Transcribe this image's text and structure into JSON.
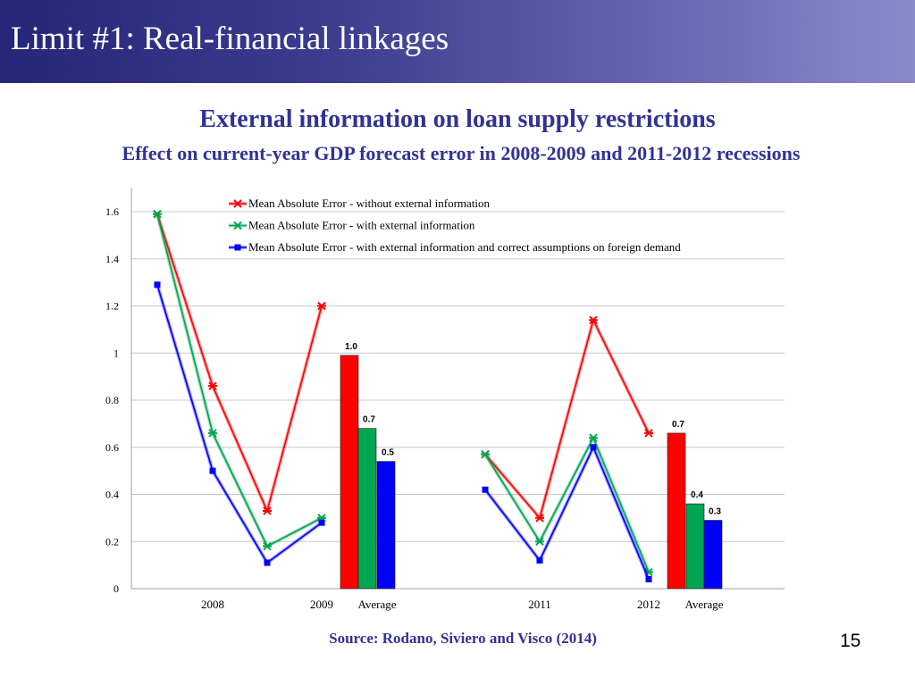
{
  "slide": {
    "header_title": "Limit #1: Real-financial linkages",
    "title": "External information on loan supply restrictions",
    "subtitle": "Effect on current-year GDP forecast error in 2008-2009 and 2011-2012 recessions",
    "source": "Source: Rodano, Siviero and Visco (2014)",
    "page_number": "15"
  },
  "colors": {
    "header_start": "#262679",
    "header_end": "#8a8acb",
    "text_accent": "#323296",
    "red": "#ff0000",
    "green": "#00a651",
    "blue": "#0000ff"
  },
  "chart_data": {
    "type": "bar+line",
    "title": "",
    "xlabel": "",
    "ylabel": "",
    "ylim": [
      0,
      1.7
    ],
    "yticks": [
      "0",
      "0.2",
      "0.4",
      "0.6",
      "0.8",
      "1",
      "1.2",
      "1.4",
      "1.6"
    ],
    "grid": true,
    "legend_position": "top",
    "groups": [
      {
        "x_labels": [
          "",
          "2008",
          "",
          "2009"
        ],
        "lines": [
          {
            "name": "Mean Absolute Error - without external information",
            "color": "#ff0000",
            "values": [
              1.59,
              0.86,
              0.33,
              1.2
            ]
          },
          {
            "name": "Mean Absolute Error - with external information",
            "color": "#00a651",
            "values": [
              1.59,
              0.66,
              0.18,
              0.3
            ]
          },
          {
            "name": "Mean Absolute Error - with external information and correct assumptions on foreign demand",
            "color": "#0000ff",
            "values": [
              1.29,
              0.5,
              0.11,
              0.28
            ]
          }
        ],
        "average": {
          "label": "Average",
          "bars": [
            {
              "value": 0.99,
              "label": "1.0",
              "color": "#ff0000"
            },
            {
              "value": 0.68,
              "label": "0.7",
              "color": "#00a651"
            },
            {
              "value": 0.54,
              "label": "0.5",
              "color": "#0000ff"
            }
          ]
        }
      },
      {
        "x_labels": [
          "",
          "2011",
          "",
          "2012"
        ],
        "lines": [
          {
            "name": "Mean Absolute Error - without external information",
            "color": "#ff0000",
            "values": [
              0.57,
              0.3,
              1.14,
              0.66
            ]
          },
          {
            "name": "Mean Absolute Error - with external information",
            "color": "#00a651",
            "values": [
              0.57,
              0.2,
              0.64,
              0.07
            ]
          },
          {
            "name": "Mean Absolute Error - with external information and correct assumptions on foreign demand",
            "color": "#0000ff",
            "values": [
              0.42,
              0.12,
              0.6,
              0.04
            ]
          }
        ],
        "average": {
          "label": "Average",
          "bars": [
            {
              "value": 0.66,
              "label": "0.7",
              "color": "#ff0000"
            },
            {
              "value": 0.36,
              "label": "0.4",
              "color": "#00a651"
            },
            {
              "value": 0.29,
              "label": "0.3",
              "color": "#0000ff"
            }
          ]
        }
      }
    ],
    "legend": [
      {
        "name": "Mean Absolute Error - without external information",
        "color": "#ff0000",
        "marker": "x"
      },
      {
        "name": "Mean Absolute Error - with external information",
        "color": "#00a651",
        "marker": "x"
      },
      {
        "name": "Mean Absolute Error - with external information and correct assumptions on foreign demand",
        "color": "#0000ff",
        "marker": "square"
      }
    ]
  }
}
